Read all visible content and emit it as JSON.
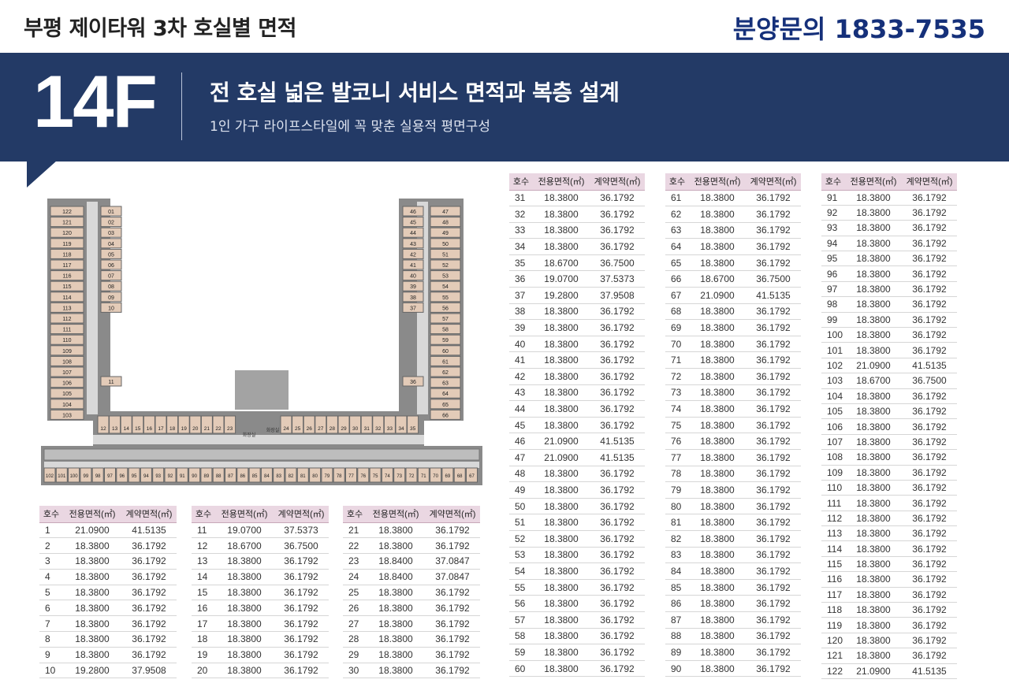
{
  "header": {
    "title": "부평 제이타워 3차 호실별 면적",
    "phone": "분양문의 1833-7535"
  },
  "banner": {
    "floor": "14F",
    "headline": "전 호실 넓은 발코니 서비스 면적과 복층 설계",
    "subline": "1인 가구 라이프스타일에 꼭 맞춘 실용적 평면구성"
  },
  "table_headers": [
    "호수",
    "전용면적(㎡)",
    "계약면적(㎡)"
  ],
  "floor_plan": {
    "left_wing_units": [
      "122",
      "121",
      "120",
      "119",
      "118",
      "117",
      "116",
      "115",
      "114",
      "113",
      "112",
      "111",
      "110",
      "109",
      "108",
      "107",
      "106",
      "105",
      "104",
      "103"
    ],
    "left_wing_inner_units": [
      "01",
      "02",
      "03",
      "04",
      "05",
      "06",
      "07",
      "08",
      "09",
      "10",
      "11"
    ],
    "right_wing_inner_units": [
      "46",
      "45",
      "44",
      "43",
      "42",
      "41",
      "40",
      "39",
      "38",
      "37",
      "36"
    ],
    "right_wing_units": [
      "47",
      "48",
      "49",
      "50",
      "51",
      "52",
      "53",
      "54",
      "55",
      "56",
      "57",
      "58",
      "59",
      "60",
      "61",
      "62",
      "63",
      "64",
      "65",
      "66"
    ],
    "mid_units_left": [
      "12",
      "13",
      "14",
      "15",
      "16",
      "17",
      "18",
      "19",
      "20",
      "21",
      "22",
      "23"
    ],
    "mid_units_right": [
      "24",
      "25",
      "26",
      "27",
      "28",
      "29",
      "30",
      "31",
      "32",
      "33",
      "34",
      "35"
    ],
    "bottom_units": [
      "102",
      "101",
      "100",
      "99",
      "98",
      "97",
      "96",
      "95",
      "94",
      "93",
      "92",
      "91",
      "90",
      "89",
      "88",
      "87",
      "86",
      "85",
      "84",
      "83",
      "82",
      "81",
      "80",
      "79",
      "78",
      "77",
      "76",
      "75",
      "74",
      "73",
      "72",
      "71",
      "70",
      "69",
      "68",
      "67"
    ],
    "toilet_label": "화장실"
  },
  "units": [
    [
      "1",
      "21.0900",
      "41.5135"
    ],
    [
      "2",
      "18.3800",
      "36.1792"
    ],
    [
      "3",
      "18.3800",
      "36.1792"
    ],
    [
      "4",
      "18.3800",
      "36.1792"
    ],
    [
      "5",
      "18.3800",
      "36.1792"
    ],
    [
      "6",
      "18.3800",
      "36.1792"
    ],
    [
      "7",
      "18.3800",
      "36.1792"
    ],
    [
      "8",
      "18.3800",
      "36.1792"
    ],
    [
      "9",
      "18.3800",
      "36.1792"
    ],
    [
      "10",
      "19.2800",
      "37.9508"
    ],
    [
      "11",
      "19.0700",
      "37.5373"
    ],
    [
      "12",
      "18.6700",
      "36.7500"
    ],
    [
      "13",
      "18.3800",
      "36.1792"
    ],
    [
      "14",
      "18.3800",
      "36.1792"
    ],
    [
      "15",
      "18.3800",
      "36.1792"
    ],
    [
      "16",
      "18.3800",
      "36.1792"
    ],
    [
      "17",
      "18.3800",
      "36.1792"
    ],
    [
      "18",
      "18.3800",
      "36.1792"
    ],
    [
      "19",
      "18.3800",
      "36.1792"
    ],
    [
      "20",
      "18.3800",
      "36.1792"
    ],
    [
      "21",
      "18.3800",
      "36.1792"
    ],
    [
      "22",
      "18.3800",
      "36.1792"
    ],
    [
      "23",
      "18.8400",
      "37.0847"
    ],
    [
      "24",
      "18.8400",
      "37.0847"
    ],
    [
      "25",
      "18.3800",
      "36.1792"
    ],
    [
      "26",
      "18.3800",
      "36.1792"
    ],
    [
      "27",
      "18.3800",
      "36.1792"
    ],
    [
      "28",
      "18.3800",
      "36.1792"
    ],
    [
      "29",
      "18.3800",
      "36.1792"
    ],
    [
      "30",
      "18.3800",
      "36.1792"
    ],
    [
      "31",
      "18.3800",
      "36.1792"
    ],
    [
      "32",
      "18.3800",
      "36.1792"
    ],
    [
      "33",
      "18.3800",
      "36.1792"
    ],
    [
      "34",
      "18.3800",
      "36.1792"
    ],
    [
      "35",
      "18.6700",
      "36.7500"
    ],
    [
      "36",
      "19.0700",
      "37.5373"
    ],
    [
      "37",
      "19.2800",
      "37.9508"
    ],
    [
      "38",
      "18.3800",
      "36.1792"
    ],
    [
      "39",
      "18.3800",
      "36.1792"
    ],
    [
      "40",
      "18.3800",
      "36.1792"
    ],
    [
      "41",
      "18.3800",
      "36.1792"
    ],
    [
      "42",
      "18.3800",
      "36.1792"
    ],
    [
      "43",
      "18.3800",
      "36.1792"
    ],
    [
      "44",
      "18.3800",
      "36.1792"
    ],
    [
      "45",
      "18.3800",
      "36.1792"
    ],
    [
      "46",
      "21.0900",
      "41.5135"
    ],
    [
      "47",
      "21.0900",
      "41.5135"
    ],
    [
      "48",
      "18.3800",
      "36.1792"
    ],
    [
      "49",
      "18.3800",
      "36.1792"
    ],
    [
      "50",
      "18.3800",
      "36.1792"
    ],
    [
      "51",
      "18.3800",
      "36.1792"
    ],
    [
      "52",
      "18.3800",
      "36.1792"
    ],
    [
      "53",
      "18.3800",
      "36.1792"
    ],
    [
      "54",
      "18.3800",
      "36.1792"
    ],
    [
      "55",
      "18.3800",
      "36.1792"
    ],
    [
      "56",
      "18.3800",
      "36.1792"
    ],
    [
      "57",
      "18.3800",
      "36.1792"
    ],
    [
      "58",
      "18.3800",
      "36.1792"
    ],
    [
      "59",
      "18.3800",
      "36.1792"
    ],
    [
      "60",
      "18.3800",
      "36.1792"
    ],
    [
      "61",
      "18.3800",
      "36.1792"
    ],
    [
      "62",
      "18.3800",
      "36.1792"
    ],
    [
      "63",
      "18.3800",
      "36.1792"
    ],
    [
      "64",
      "18.3800",
      "36.1792"
    ],
    [
      "65",
      "18.3800",
      "36.1792"
    ],
    [
      "66",
      "18.6700",
      "36.7500"
    ],
    [
      "67",
      "21.0900",
      "41.5135"
    ],
    [
      "68",
      "18.3800",
      "36.1792"
    ],
    [
      "69",
      "18.3800",
      "36.1792"
    ],
    [
      "70",
      "18.3800",
      "36.1792"
    ],
    [
      "71",
      "18.3800",
      "36.1792"
    ],
    [
      "72",
      "18.3800",
      "36.1792"
    ],
    [
      "73",
      "18.3800",
      "36.1792"
    ],
    [
      "74",
      "18.3800",
      "36.1792"
    ],
    [
      "75",
      "18.3800",
      "36.1792"
    ],
    [
      "76",
      "18.3800",
      "36.1792"
    ],
    [
      "77",
      "18.3800",
      "36.1792"
    ],
    [
      "78",
      "18.3800",
      "36.1792"
    ],
    [
      "79",
      "18.3800",
      "36.1792"
    ],
    [
      "80",
      "18.3800",
      "36.1792"
    ],
    [
      "81",
      "18.3800",
      "36.1792"
    ],
    [
      "82",
      "18.3800",
      "36.1792"
    ],
    [
      "83",
      "18.3800",
      "36.1792"
    ],
    [
      "84",
      "18.3800",
      "36.1792"
    ],
    [
      "85",
      "18.3800",
      "36.1792"
    ],
    [
      "86",
      "18.3800",
      "36.1792"
    ],
    [
      "87",
      "18.3800",
      "36.1792"
    ],
    [
      "88",
      "18.3800",
      "36.1792"
    ],
    [
      "89",
      "18.3800",
      "36.1792"
    ],
    [
      "90",
      "18.3800",
      "36.1792"
    ],
    [
      "91",
      "18.3800",
      "36.1792"
    ],
    [
      "92",
      "18.3800",
      "36.1792"
    ],
    [
      "93",
      "18.3800",
      "36.1792"
    ],
    [
      "94",
      "18.3800",
      "36.1792"
    ],
    [
      "95",
      "18.3800",
      "36.1792"
    ],
    [
      "96",
      "18.3800",
      "36.1792"
    ],
    [
      "97",
      "18.3800",
      "36.1792"
    ],
    [
      "98",
      "18.3800",
      "36.1792"
    ],
    [
      "99",
      "18.3800",
      "36.1792"
    ],
    [
      "100",
      "18.3800",
      "36.1792"
    ],
    [
      "101",
      "18.3800",
      "36.1792"
    ],
    [
      "102",
      "21.0900",
      "41.5135"
    ],
    [
      "103",
      "18.6700",
      "36.7500"
    ],
    [
      "104",
      "18.3800",
      "36.1792"
    ],
    [
      "105",
      "18.3800",
      "36.1792"
    ],
    [
      "106",
      "18.3800",
      "36.1792"
    ],
    [
      "107",
      "18.3800",
      "36.1792"
    ],
    [
      "108",
      "18.3800",
      "36.1792"
    ],
    [
      "109",
      "18.3800",
      "36.1792"
    ],
    [
      "110",
      "18.3800",
      "36.1792"
    ],
    [
      "111",
      "18.3800",
      "36.1792"
    ],
    [
      "112",
      "18.3800",
      "36.1792"
    ],
    [
      "113",
      "18.3800",
      "36.1792"
    ],
    [
      "114",
      "18.3800",
      "36.1792"
    ],
    [
      "115",
      "18.3800",
      "36.1792"
    ],
    [
      "116",
      "18.3800",
      "36.1792"
    ],
    [
      "117",
      "18.3800",
      "36.1792"
    ],
    [
      "118",
      "18.3800",
      "36.1792"
    ],
    [
      "119",
      "18.3800",
      "36.1792"
    ],
    [
      "120",
      "18.3800",
      "36.1792"
    ],
    [
      "121",
      "18.3800",
      "36.1792"
    ],
    [
      "122",
      "21.0900",
      "41.5135"
    ]
  ],
  "colors": {
    "banner": "#233a66",
    "phone": "#15307a",
    "table_header": "#ead7e2",
    "unit_fill": "#e3cbb8",
    "wall": "#8a8a8a"
  }
}
